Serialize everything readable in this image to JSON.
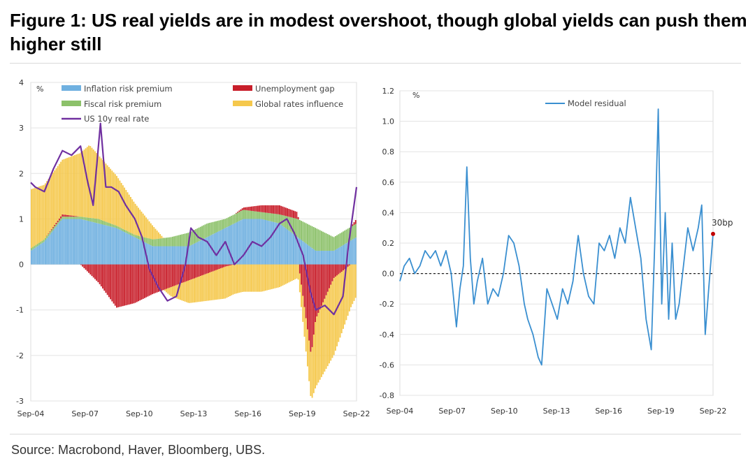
{
  "title": "Figure 1: US real yields are in modest overshoot, though global yields can push them higher still",
  "source": "Source: Macrobond, Haver, Bloomberg, UBS.",
  "colors": {
    "inflation": "#6fb0e0",
    "fiscal": "#8cc16a",
    "unemployment": "#c81e2a",
    "global": "#f5c84c",
    "real_rate": "#7030a0",
    "residual": "#3a8fd0"
  },
  "chart_data": [
    {
      "type": "bar",
      "title": "",
      "unit_label": "%",
      "ylim": [
        -3,
        4
      ],
      "yticks": [
        "4",
        "3",
        "2",
        "1",
        "0",
        "-1",
        "-2",
        "-3"
      ],
      "xticks": [
        "Sep-04",
        "Sep-07",
        "Sep-10",
        "Sep-13",
        "Sep-16",
        "Sep-19",
        "Sep-22"
      ],
      "legend": {
        "inflation": "Inflation risk premium",
        "fiscal": "Fiscal risk premium",
        "real_rate": "US 10y real rate",
        "unemployment": "Unemployment gap",
        "global": "Global rates influence"
      },
      "series": [
        {
          "name": "Inflation risk premium",
          "x": [
            2004.75,
            2005.5,
            2006.5,
            2007.5,
            2008.5,
            2009.5,
            2010.5,
            2011.5,
            2012.5,
            2013.5,
            2014.5,
            2015.5,
            2016.5,
            2017.5,
            2018.5,
            2019.5,
            2020.5,
            2021.5,
            2022.75
          ],
          "values": [
            0.3,
            0.5,
            1.0,
            1.0,
            0.9,
            0.8,
            0.6,
            0.4,
            0.4,
            0.4,
            0.6,
            0.8,
            1.0,
            1.0,
            0.9,
            0.6,
            0.3,
            0.3,
            0.6
          ]
        },
        {
          "name": "Fiscal risk premium",
          "x": [
            2004.75,
            2005.5,
            2006.5,
            2007.5,
            2008.5,
            2009.5,
            2010.5,
            2011.5,
            2012.5,
            2013.5,
            2014.5,
            2015.5,
            2016.5,
            2017.5,
            2018.5,
            2019.5,
            2020.5,
            2021.5,
            2022.75
          ],
          "values": [
            0.05,
            0.05,
            0.05,
            0.05,
            0.1,
            0.05,
            0.05,
            0.15,
            0.2,
            0.3,
            0.3,
            0.2,
            0.2,
            0.15,
            0.2,
            0.4,
            0.5,
            0.3,
            0.3
          ]
        },
        {
          "name": "Unemployment gap",
          "x": [
            2004.75,
            2005.5,
            2006.5,
            2007.5,
            2008.5,
            2009.5,
            2010.5,
            2011.5,
            2012.5,
            2013.5,
            2014.5,
            2015.5,
            2016.5,
            2017.5,
            2018.5,
            2019.5,
            2020.25,
            2020.5,
            2021.5,
            2022.75
          ],
          "values": [
            0.0,
            0.0,
            0.05,
            0.0,
            -0.4,
            -0.95,
            -0.85,
            -0.65,
            -0.5,
            -0.35,
            -0.2,
            -0.05,
            0.05,
            0.15,
            0.2,
            0.15,
            -2.0,
            -1.2,
            -0.3,
            0.1
          ]
        },
        {
          "name": "Global rates influence",
          "x": [
            2004.75,
            2005.5,
            2006.5,
            2007.5,
            2008.0,
            2008.5,
            2009.5,
            2010.5,
            2011.5,
            2012.5,
            2013.5,
            2014.5,
            2015.5,
            2016.5,
            2017.5,
            2018.5,
            2019.5,
            2020.25,
            2020.5,
            2021.5,
            2022.75
          ],
          "values": [
            1.3,
            1.2,
            1.2,
            1.4,
            1.6,
            1.4,
            1.1,
            0.7,
            0.3,
            -0.2,
            -0.5,
            -0.6,
            -0.7,
            -0.6,
            -0.6,
            -0.5,
            -0.3,
            -1.0,
            -1.5,
            -1.7,
            -0.7
          ]
        },
        {
          "name": "US 10y real rate",
          "x": [
            2004.75,
            2005.0,
            2005.5,
            2006.0,
            2006.5,
            2007.0,
            2007.5,
            2007.9,
            2008.2,
            2008.6,
            2008.9,
            2009.2,
            2009.6,
            2010.0,
            2010.5,
            2010.9,
            2011.3,
            2011.8,
            2012.3,
            2012.8,
            2013.3,
            2013.6,
            2014.0,
            2014.5,
            2015.0,
            2015.5,
            2016.0,
            2016.5,
            2017.0,
            2017.5,
            2018.0,
            2018.5,
            2018.9,
            2019.3,
            2019.8,
            2020.2,
            2020.5,
            2021.0,
            2021.5,
            2022.0,
            2022.3,
            2022.75
          ],
          "values": [
            1.8,
            1.7,
            1.6,
            2.1,
            2.5,
            2.4,
            2.6,
            1.8,
            1.3,
            3.1,
            1.7,
            1.7,
            1.6,
            1.3,
            1.0,
            0.6,
            -0.1,
            -0.5,
            -0.8,
            -0.7,
            0.0,
            0.8,
            0.6,
            0.5,
            0.2,
            0.5,
            0.0,
            0.2,
            0.5,
            0.4,
            0.6,
            0.9,
            1.0,
            0.7,
            0.2,
            -0.6,
            -1.0,
            -0.9,
            -1.1,
            -0.7,
            0.4,
            1.7
          ]
        }
      ]
    },
    {
      "type": "line",
      "title": "",
      "unit_label": "%",
      "ylim": [
        -0.8,
        1.2
      ],
      "yticks": [
        "1.2",
        "1.0",
        "0.8",
        "0.6",
        "0.4",
        "0.2",
        "0.0",
        "-0.2",
        "-0.4",
        "-0.6",
        "-0.8"
      ],
      "xticks": [
        "Sep-04",
        "Sep-07",
        "Sep-10",
        "Sep-13",
        "Sep-16",
        "Sep-19",
        "Sep-22"
      ],
      "legend": {
        "residual": "Model residual"
      },
      "annotation": {
        "label": "30bp",
        "x": 2022.75,
        "y": 0.26
      },
      "series": [
        {
          "name": "Model residual",
          "x": [
            2004.75,
            2005.0,
            2005.3,
            2005.6,
            2005.9,
            2006.2,
            2006.5,
            2006.8,
            2007.1,
            2007.4,
            2007.7,
            2008.0,
            2008.2,
            2008.4,
            2008.6,
            2008.8,
            2009.0,
            2009.2,
            2009.5,
            2009.8,
            2010.1,
            2010.4,
            2010.7,
            2011.0,
            2011.3,
            2011.6,
            2011.9,
            2012.1,
            2012.4,
            2012.7,
            2012.9,
            2013.2,
            2013.5,
            2013.8,
            2014.1,
            2014.4,
            2014.7,
            2015.0,
            2015.3,
            2015.6,
            2015.9,
            2016.2,
            2016.5,
            2016.8,
            2017.1,
            2017.4,
            2017.7,
            2018.0,
            2018.3,
            2018.6,
            2018.9,
            2019.2,
            2019.4,
            2019.6,
            2019.8,
            2020.0,
            2020.2,
            2020.4,
            2020.6,
            2020.8,
            2021.0,
            2021.3,
            2021.6,
            2021.9,
            2022.1,
            2022.3,
            2022.5,
            2022.75
          ],
          "values": [
            -0.05,
            0.05,
            0.1,
            0.0,
            0.05,
            0.15,
            0.1,
            0.15,
            0.05,
            0.15,
            0.0,
            -0.35,
            -0.1,
            0.05,
            0.7,
            0.1,
            -0.2,
            -0.05,
            0.1,
            -0.2,
            -0.1,
            -0.15,
            0.0,
            0.25,
            0.2,
            0.05,
            -0.2,
            -0.3,
            -0.4,
            -0.55,
            -0.6,
            -0.1,
            -0.2,
            -0.3,
            -0.1,
            -0.2,
            -0.05,
            0.25,
            0.0,
            -0.15,
            -0.2,
            0.2,
            0.15,
            0.25,
            0.1,
            0.3,
            0.2,
            0.5,
            0.3,
            0.1,
            -0.3,
            -0.5,
            0.2,
            1.08,
            -0.2,
            0.4,
            -0.3,
            0.2,
            -0.3,
            -0.2,
            0.0,
            0.3,
            0.15,
            0.3,
            0.45,
            -0.4,
            -0.1,
            0.26
          ]
        }
      ]
    }
  ]
}
